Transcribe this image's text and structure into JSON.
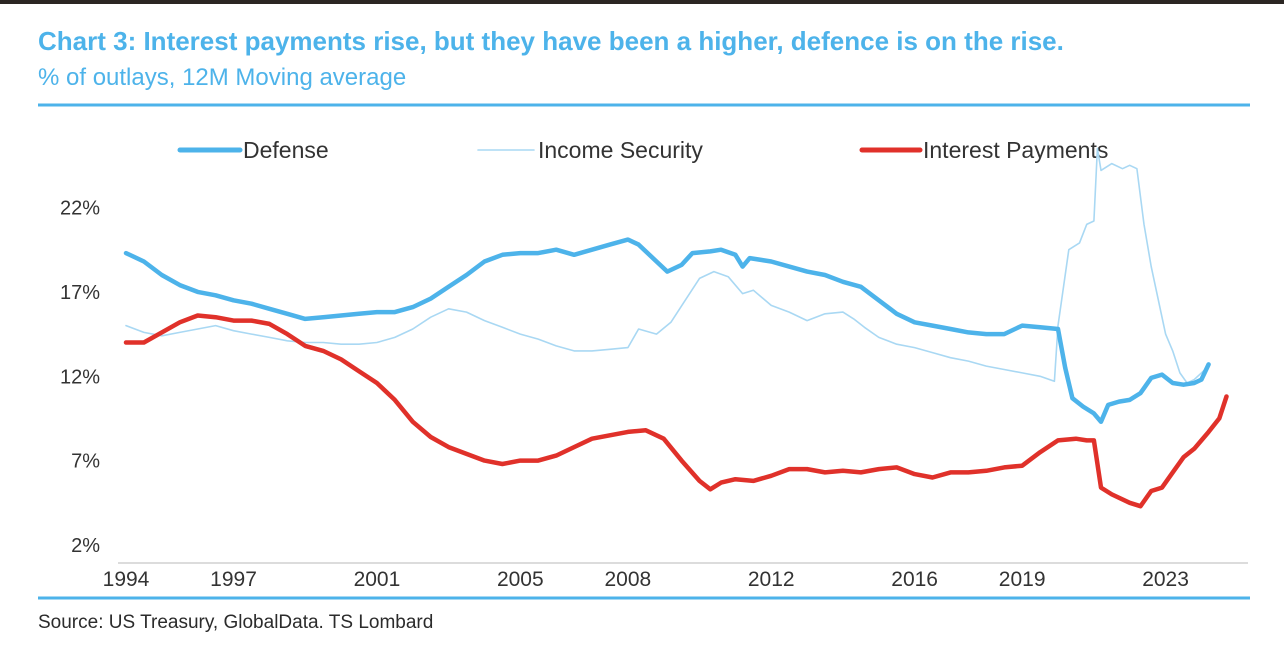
{
  "header": {
    "title": "Chart 3: Interest payments rise, but they have been a higher, defence is on the rise.",
    "subtitle": "% of outlays, 12M Moving average"
  },
  "footer": {
    "source": "Source: US Treasury, GlobalData. TS Lombard"
  },
  "colors": {
    "title": "#4db3ea",
    "rule": "#4db3ea",
    "axis_text": "#333333",
    "defense": "#4db3ea",
    "income_security": "#a9d8f3",
    "interest_payments": "#e0312a"
  },
  "chart_data": {
    "type": "line",
    "title": "Chart 3: Interest payments rise, but they have been a higher, defence is on the rise.",
    "subtitle": "% of outlays, 12M Moving average",
    "xlabel": "",
    "ylabel": "",
    "xlim": [
      1994,
      2025.3
    ],
    "ylim": [
      2,
      26
    ],
    "x_ticks": [
      {
        "value": 1994,
        "label": "1994"
      },
      {
        "value": 1997,
        "label": "1997"
      },
      {
        "value": 2001,
        "label": "2001"
      },
      {
        "value": 2005,
        "label": "2005"
      },
      {
        "value": 2008,
        "label": "2008"
      },
      {
        "value": 2012,
        "label": "2012"
      },
      {
        "value": 2016,
        "label": "2016"
      },
      {
        "value": 2019,
        "label": "2019"
      },
      {
        "value": 2023,
        "label": "2023"
      }
    ],
    "y_ticks": [
      {
        "value": 2,
        "label": "2%"
      },
      {
        "value": 7,
        "label": "7%"
      },
      {
        "value": 12,
        "label": "12%"
      },
      {
        "value": 17,
        "label": "17%"
      },
      {
        "value": 22,
        "label": "22%"
      }
    ],
    "grid": false,
    "legend_position": "top",
    "series": [
      {
        "name": "Defense",
        "color": "#4db3ea",
        "style": "thick",
        "points": [
          [
            1994,
            19.3
          ],
          [
            1994.5,
            18.8
          ],
          [
            1995,
            18
          ],
          [
            1995.5,
            17.4
          ],
          [
            1996,
            17
          ],
          [
            1996.5,
            16.8
          ],
          [
            1997,
            16.5
          ],
          [
            1997.5,
            16.3
          ],
          [
            1998,
            16
          ],
          [
            1998.5,
            15.7
          ],
          [
            1999,
            15.4
          ],
          [
            1999.5,
            15.5
          ],
          [
            2000,
            15.6
          ],
          [
            2000.5,
            15.7
          ],
          [
            2001,
            15.8
          ],
          [
            2001.5,
            15.8
          ],
          [
            2002,
            16.1
          ],
          [
            2002.5,
            16.6
          ],
          [
            2003,
            17.3
          ],
          [
            2003.5,
            18
          ],
          [
            2004,
            18.8
          ],
          [
            2004.5,
            19.2
          ],
          [
            2005,
            19.3
          ],
          [
            2005.5,
            19.3
          ],
          [
            2006,
            19.5
          ],
          [
            2006.5,
            19.2
          ],
          [
            2007,
            19.5
          ],
          [
            2007.5,
            19.8
          ],
          [
            2008,
            20.1
          ],
          [
            2008.3,
            19.8
          ],
          [
            2008.8,
            18.8
          ],
          [
            2009.1,
            18.2
          ],
          [
            2009.5,
            18.6
          ],
          [
            2009.8,
            19.3
          ],
          [
            2010.3,
            19.4
          ],
          [
            2010.6,
            19.5
          ],
          [
            2011,
            19.2
          ],
          [
            2011.2,
            18.5
          ],
          [
            2011.4,
            19
          ],
          [
            2012,
            18.8
          ],
          [
            2012.5,
            18.5
          ],
          [
            2013,
            18.2
          ],
          [
            2013.5,
            18
          ],
          [
            2014,
            17.6
          ],
          [
            2014.5,
            17.3
          ],
          [
            2015,
            16.5
          ],
          [
            2015.5,
            15.7
          ],
          [
            2016,
            15.2
          ],
          [
            2016.5,
            15
          ],
          [
            2017,
            14.8
          ],
          [
            2017.5,
            14.6
          ],
          [
            2018,
            14.5
          ],
          [
            2018.5,
            14.5
          ],
          [
            2019,
            15
          ],
          [
            2019.5,
            14.9
          ],
          [
            2020,
            14.8
          ],
          [
            2020.2,
            12.5
          ],
          [
            2020.4,
            10.7
          ],
          [
            2020.7,
            10.2
          ],
          [
            2021,
            9.8
          ],
          [
            2021.2,
            9.3
          ],
          [
            2021.4,
            10.3
          ],
          [
            2021.7,
            10.5
          ],
          [
            2022,
            10.6
          ],
          [
            2022.3,
            11
          ],
          [
            2022.6,
            11.9
          ],
          [
            2022.9,
            12.1
          ],
          [
            2023.2,
            11.6
          ],
          [
            2023.5,
            11.5
          ],
          [
            2023.8,
            11.6
          ],
          [
            2024,
            11.8
          ],
          [
            2024.2,
            12.7
          ]
        ]
      },
      {
        "name": "Income Security",
        "color": "#a9d8f3",
        "style": "thin",
        "points": [
          [
            1994,
            15
          ],
          [
            1994.5,
            14.6
          ],
          [
            1995,
            14.4
          ],
          [
            1995.5,
            14.6
          ],
          [
            1996,
            14.8
          ],
          [
            1996.5,
            15
          ],
          [
            1997,
            14.7
          ],
          [
            1997.5,
            14.5
          ],
          [
            1998,
            14.3
          ],
          [
            1998.5,
            14.1
          ],
          [
            1999,
            14
          ],
          [
            1999.5,
            14
          ],
          [
            2000,
            13.9
          ],
          [
            2000.5,
            13.9
          ],
          [
            2001,
            14
          ],
          [
            2001.5,
            14.3
          ],
          [
            2002,
            14.8
          ],
          [
            2002.5,
            15.5
          ],
          [
            2003,
            16
          ],
          [
            2003.5,
            15.8
          ],
          [
            2004,
            15.3
          ],
          [
            2004.5,
            14.9
          ],
          [
            2005,
            14.5
          ],
          [
            2005.5,
            14.2
          ],
          [
            2006,
            13.8
          ],
          [
            2006.5,
            13.5
          ],
          [
            2007,
            13.5
          ],
          [
            2007.5,
            13.6
          ],
          [
            2008,
            13.7
          ],
          [
            2008.3,
            14.8
          ],
          [
            2008.8,
            14.5
          ],
          [
            2009.2,
            15.2
          ],
          [
            2009.6,
            16.5
          ],
          [
            2010,
            17.8
          ],
          [
            2010.4,
            18.2
          ],
          [
            2010.8,
            17.9
          ],
          [
            2011.2,
            16.9
          ],
          [
            2011.5,
            17.1
          ],
          [
            2012,
            16.2
          ],
          [
            2012.5,
            15.8
          ],
          [
            2013,
            15.3
          ],
          [
            2013.5,
            15.7
          ],
          [
            2014,
            15.8
          ],
          [
            2014.3,
            15.4
          ],
          [
            2014.6,
            14.9
          ],
          [
            2015,
            14.3
          ],
          [
            2015.5,
            13.9
          ],
          [
            2016,
            13.7
          ],
          [
            2016.5,
            13.4
          ],
          [
            2017,
            13.1
          ],
          [
            2017.5,
            12.9
          ],
          [
            2018,
            12.6
          ],
          [
            2018.5,
            12.4
          ],
          [
            2019,
            12.2
          ],
          [
            2019.5,
            12
          ],
          [
            2019.9,
            11.7
          ],
          [
            2020,
            15
          ],
          [
            2020.3,
            19.5
          ],
          [
            2020.6,
            19.9
          ],
          [
            2020.8,
            21
          ],
          [
            2021,
            21.2
          ],
          [
            2021.1,
            25.5
          ],
          [
            2021.2,
            24.2
          ],
          [
            2021.5,
            24.6
          ],
          [
            2021.8,
            24.3
          ],
          [
            2022,
            24.5
          ],
          [
            2022.2,
            24.3
          ],
          [
            2022.4,
            21
          ],
          [
            2022.6,
            18.5
          ],
          [
            2022.8,
            16.5
          ],
          [
            2023,
            14.5
          ],
          [
            2023.2,
            13.5
          ],
          [
            2023.4,
            12.2
          ],
          [
            2023.6,
            11.6
          ],
          [
            2023.8,
            11.8
          ],
          [
            2024,
            12.2
          ],
          [
            2024.2,
            12.6
          ]
        ]
      },
      {
        "name": "Interest Payments",
        "color": "#e0312a",
        "style": "thick",
        "points": [
          [
            1994,
            14
          ],
          [
            1994.5,
            14
          ],
          [
            1995,
            14.6
          ],
          [
            1995.5,
            15.2
          ],
          [
            1996,
            15.6
          ],
          [
            1996.5,
            15.5
          ],
          [
            1997,
            15.3
          ],
          [
            1997.5,
            15.3
          ],
          [
            1998,
            15.1
          ],
          [
            1998.5,
            14.5
          ],
          [
            1999,
            13.8
          ],
          [
            1999.5,
            13.5
          ],
          [
            2000,
            13
          ],
          [
            2000.5,
            12.3
          ],
          [
            2001,
            11.6
          ],
          [
            2001.5,
            10.6
          ],
          [
            2002,
            9.3
          ],
          [
            2002.5,
            8.4
          ],
          [
            2003,
            7.8
          ],
          [
            2003.5,
            7.4
          ],
          [
            2004,
            7
          ],
          [
            2004.5,
            6.8
          ],
          [
            2005,
            7
          ],
          [
            2005.5,
            7
          ],
          [
            2006,
            7.3
          ],
          [
            2006.5,
            7.8
          ],
          [
            2007,
            8.3
          ],
          [
            2007.5,
            8.5
          ],
          [
            2008,
            8.7
          ],
          [
            2008.5,
            8.8
          ],
          [
            2009,
            8.3
          ],
          [
            2009.5,
            7
          ],
          [
            2010,
            5.8
          ],
          [
            2010.3,
            5.3
          ],
          [
            2010.6,
            5.7
          ],
          [
            2011,
            5.9
          ],
          [
            2011.5,
            5.8
          ],
          [
            2012,
            6.1
          ],
          [
            2012.5,
            6.5
          ],
          [
            2013,
            6.5
          ],
          [
            2013.5,
            6.3
          ],
          [
            2014,
            6.4
          ],
          [
            2014.5,
            6.3
          ],
          [
            2015,
            6.5
          ],
          [
            2015.5,
            6.6
          ],
          [
            2016,
            6.2
          ],
          [
            2016.5,
            6
          ],
          [
            2017,
            6.3
          ],
          [
            2017.5,
            6.3
          ],
          [
            2018,
            6.4
          ],
          [
            2018.5,
            6.6
          ],
          [
            2019,
            6.7
          ],
          [
            2019.5,
            7.5
          ],
          [
            2020,
            8.2
          ],
          [
            2020.5,
            8.3
          ],
          [
            2020.8,
            8.2
          ],
          [
            2021,
            8.2
          ],
          [
            2021.2,
            5.4
          ],
          [
            2021.5,
            5
          ],
          [
            2022,
            4.5
          ],
          [
            2022.3,
            4.3
          ],
          [
            2022.6,
            5.2
          ],
          [
            2022.9,
            5.4
          ],
          [
            2023.2,
            6.3
          ],
          [
            2023.5,
            7.2
          ],
          [
            2023.8,
            7.7
          ],
          [
            2024,
            8.2
          ],
          [
            2024.2,
            8.7
          ],
          [
            2024.5,
            9.5
          ],
          [
            2024.7,
            10.8
          ]
        ]
      }
    ]
  }
}
